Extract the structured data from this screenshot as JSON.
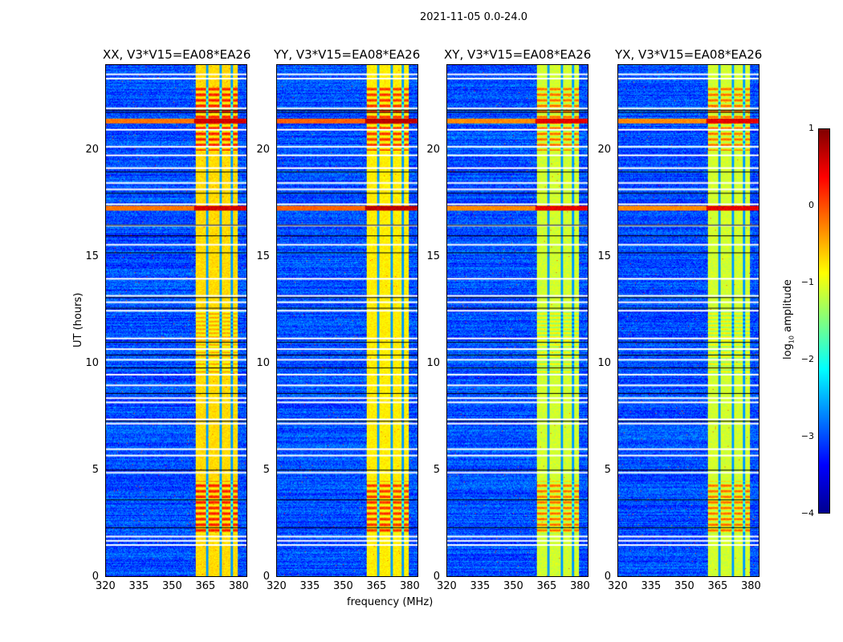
{
  "chart_data": {
    "type": "heatmap",
    "title": "2021-11-05 0.0-24.0",
    "xlabel": "frequency (MHz)",
    "ylabel": "UT (hours)",
    "xlim": [
      320,
      384
    ],
    "ylim": [
      0,
      24
    ],
    "xticks": [
      "320",
      "335",
      "350",
      "365",
      "380"
    ],
    "yticks": [
      "0",
      "5",
      "10",
      "15",
      "20"
    ],
    "colorbar": {
      "label": "log10 amplitude",
      "label_main": "log",
      "label_sub": "10",
      "label_tail": " amplitude",
      "range": [
        -4,
        1
      ],
      "ticks": [
        "1",
        "0",
        "−1",
        "−2",
        "−3",
        "−4"
      ],
      "colormap": "jet"
    },
    "panels": [
      {
        "title": "XX, V3*V15=EA08*EA26",
        "band_level": -0.7,
        "band_peak": 0.6
      },
      {
        "title": "YY, V3*V15=EA08*EA26",
        "band_level": -0.8,
        "band_peak": 0.7
      },
      {
        "title": "XY, V3*V15=EA08*EA26",
        "band_level": -1.1,
        "band_peak": 0.5
      },
      {
        "title": "YX, V3*V15=EA08*EA26",
        "band_level": -1.1,
        "band_peak": 0.5
      }
    ],
    "background_level": -3.0,
    "band_MHz": [
      360.5,
      380
    ],
    "band_gaps_MHz": [
      366,
      372,
      377
    ],
    "rfi_hours": [
      17.3,
      21.4
    ],
    "flagged_hours_white": [
      1.5,
      1.7,
      1.9,
      4.9,
      5.7,
      6.0,
      7.2,
      7.4,
      8.2,
      8.4,
      9.0,
      9.5,
      10.2,
      10.7,
      11.2,
      12.5,
      12.9,
      13.2,
      14.0,
      15.6,
      16.5,
      17.5,
      18.2,
      18.5,
      19.2,
      19.8,
      20.2,
      21.0,
      22.0,
      23.4,
      23.6
    ],
    "flagged_hours_black": [
      2.3,
      3.6,
      5.0,
      7.3,
      8.6,
      9.8,
      10.4,
      11.0,
      12.6,
      13.1,
      15.2,
      16.0,
      16.5,
      18.0,
      19.0,
      21.8,
      21.9
    ]
  }
}
